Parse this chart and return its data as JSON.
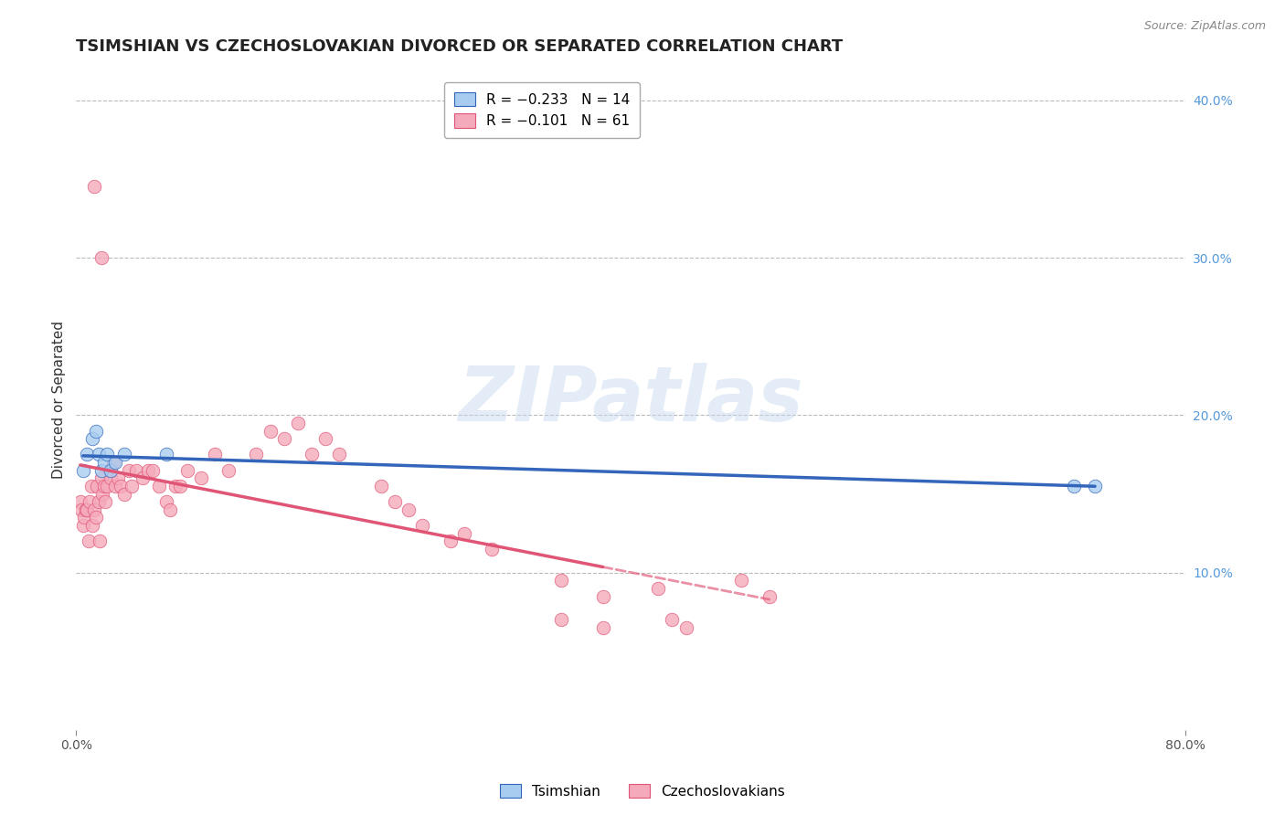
{
  "title": "TSIMSHIAN VS CZECHOSLOVAKIAN DIVORCED OR SEPARATED CORRELATION CHART",
  "source": "Source: ZipAtlas.com",
  "ylabel": "Divorced or Separated",
  "watermark": "ZIPatlas",
  "legend_tsimshian": "R = −0.233   N = 14",
  "legend_czech": "R = −0.101   N = 61",
  "xlim": [
    0.0,
    0.8
  ],
  "ylim": [
    0.0,
    0.42
  ],
  "yticks_right": [
    0.1,
    0.2,
    0.3,
    0.4
  ],
  "ytick_labels_right": [
    "10.0%",
    "20.0%",
    "30.0%",
    "40.0%"
  ],
  "tsimshian_color": "#A8CCF0",
  "czech_color": "#F5AABB",
  "tsimshian_line_color": "#3366BB",
  "czech_line_color": "#E05575",
  "background_color": "#FFFFFF",
  "grid_color": "#BBBBBB",
  "tsimshian_x": [
    0.005,
    0.008,
    0.012,
    0.014,
    0.016,
    0.018,
    0.02,
    0.022,
    0.025,
    0.028,
    0.035,
    0.065,
    0.72,
    0.735
  ],
  "tsimshian_y": [
    0.165,
    0.175,
    0.185,
    0.19,
    0.175,
    0.165,
    0.17,
    0.175,
    0.165,
    0.17,
    0.175,
    0.175,
    0.155,
    0.155
  ],
  "czech_x": [
    0.003,
    0.004,
    0.005,
    0.006,
    0.007,
    0.008,
    0.009,
    0.01,
    0.011,
    0.012,
    0.013,
    0.014,
    0.015,
    0.016,
    0.017,
    0.018,
    0.019,
    0.02,
    0.021,
    0.022,
    0.024,
    0.025,
    0.027,
    0.028,
    0.03,
    0.032,
    0.035,
    0.038,
    0.04,
    0.043,
    0.048,
    0.052,
    0.055,
    0.06,
    0.065,
    0.068,
    0.072,
    0.075,
    0.08,
    0.09,
    0.1,
    0.11,
    0.13,
    0.14,
    0.15,
    0.16,
    0.17,
    0.18,
    0.19,
    0.22,
    0.23,
    0.24,
    0.25,
    0.27,
    0.28,
    0.3,
    0.35,
    0.38,
    0.42,
    0.48,
    0.5
  ],
  "czech_y": [
    0.145,
    0.14,
    0.13,
    0.135,
    0.14,
    0.14,
    0.12,
    0.145,
    0.155,
    0.13,
    0.14,
    0.135,
    0.155,
    0.145,
    0.12,
    0.16,
    0.15,
    0.155,
    0.145,
    0.155,
    0.165,
    0.16,
    0.17,
    0.155,
    0.16,
    0.155,
    0.15,
    0.165,
    0.155,
    0.165,
    0.16,
    0.165,
    0.165,
    0.155,
    0.145,
    0.14,
    0.155,
    0.155,
    0.165,
    0.16,
    0.175,
    0.165,
    0.175,
    0.19,
    0.185,
    0.195,
    0.175,
    0.185,
    0.175,
    0.155,
    0.145,
    0.14,
    0.13,
    0.12,
    0.125,
    0.115,
    0.095,
    0.085,
    0.09,
    0.095,
    0.085
  ],
  "czech_x_outliers": [
    0.013,
    0.018,
    0.35,
    0.38,
    0.43,
    0.44
  ],
  "czech_y_outliers": [
    0.345,
    0.3,
    0.07,
    0.065,
    0.07,
    0.065
  ],
  "title_fontsize": 13,
  "axis_fontsize": 11,
  "tick_fontsize": 10,
  "legend_fontsize": 11,
  "marker_size": 110
}
